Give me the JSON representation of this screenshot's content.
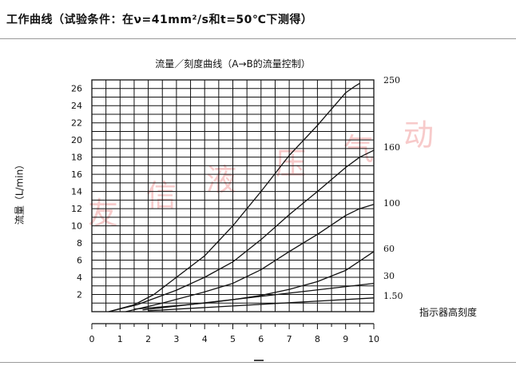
{
  "header": {
    "title": "工作曲线（试验条件：在ν=41mm²/s和t=50℃下测得）"
  },
  "watermark": {
    "chars": [
      "友",
      "信",
      "液",
      "压",
      "气",
      "动"
    ],
    "color": "#f2a0a0"
  },
  "chart_data": {
    "type": "line",
    "title": "流量／刻度曲线（A→B的流量控制）",
    "xlabel": "指示器高刻度",
    "ylabel": "流量（L/min）",
    "xlim": [
      0,
      10
    ],
    "ylim": [
      0,
      27
    ],
    "x_ticks": [
      "0",
      "1",
      "2",
      "3",
      "4",
      "5",
      "6",
      "7",
      "8",
      "9",
      "10"
    ],
    "y_ticks": [
      "2",
      "4",
      "6",
      "8",
      "10",
      "12",
      "14",
      "16",
      "18",
      "20",
      "22",
      "24",
      "26"
    ],
    "grid": true,
    "series": [
      {
        "name": "250",
        "points": [
          [
            0.6,
            0
          ],
          [
            1.5,
            0.8
          ],
          [
            2.2,
            2
          ],
          [
            3,
            4
          ],
          [
            4,
            6.5
          ],
          [
            5,
            10
          ],
          [
            6,
            14
          ],
          [
            7,
            18.2
          ],
          [
            8,
            21.7
          ],
          [
            9,
            25.5
          ],
          [
            9.3,
            26.2
          ],
          [
            9.5,
            26.6
          ]
        ]
      },
      {
        "name": "160",
        "points": [
          [
            0.6,
            0
          ],
          [
            1.6,
            0.8
          ],
          [
            3,
            2.5
          ],
          [
            4,
            4
          ],
          [
            5,
            5.8
          ],
          [
            6,
            8.4
          ],
          [
            7,
            11.3
          ],
          [
            8,
            14
          ],
          [
            9,
            16.8
          ],
          [
            9.5,
            18
          ],
          [
            10,
            18.8
          ]
        ]
      },
      {
        "name": "100",
        "points": [
          [
            1.2,
            0
          ],
          [
            2.5,
            1
          ],
          [
            4,
            2.3
          ],
          [
            5,
            3.3
          ],
          [
            6,
            4.9
          ],
          [
            7,
            7
          ],
          [
            8,
            9
          ],
          [
            9,
            11.2
          ],
          [
            9.5,
            12
          ],
          [
            10,
            12.5
          ]
        ]
      },
      {
        "name": "60",
        "points": [
          [
            1.5,
            0.3
          ],
          [
            3,
            0.7
          ],
          [
            4,
            1
          ],
          [
            5,
            1.4
          ],
          [
            6,
            1.9
          ],
          [
            7,
            2.6
          ],
          [
            8,
            3.5
          ],
          [
            9,
            4.8
          ],
          [
            10,
            7
          ]
        ]
      },
      {
        "name": "30",
        "points": [
          [
            1.8,
            0.2
          ],
          [
            10,
            3.3
          ]
        ]
      },
      {
        "name": "1.50",
        "points": [
          [
            2,
            0.1
          ],
          [
            10,
            1.6
          ]
        ]
      }
    ]
  }
}
